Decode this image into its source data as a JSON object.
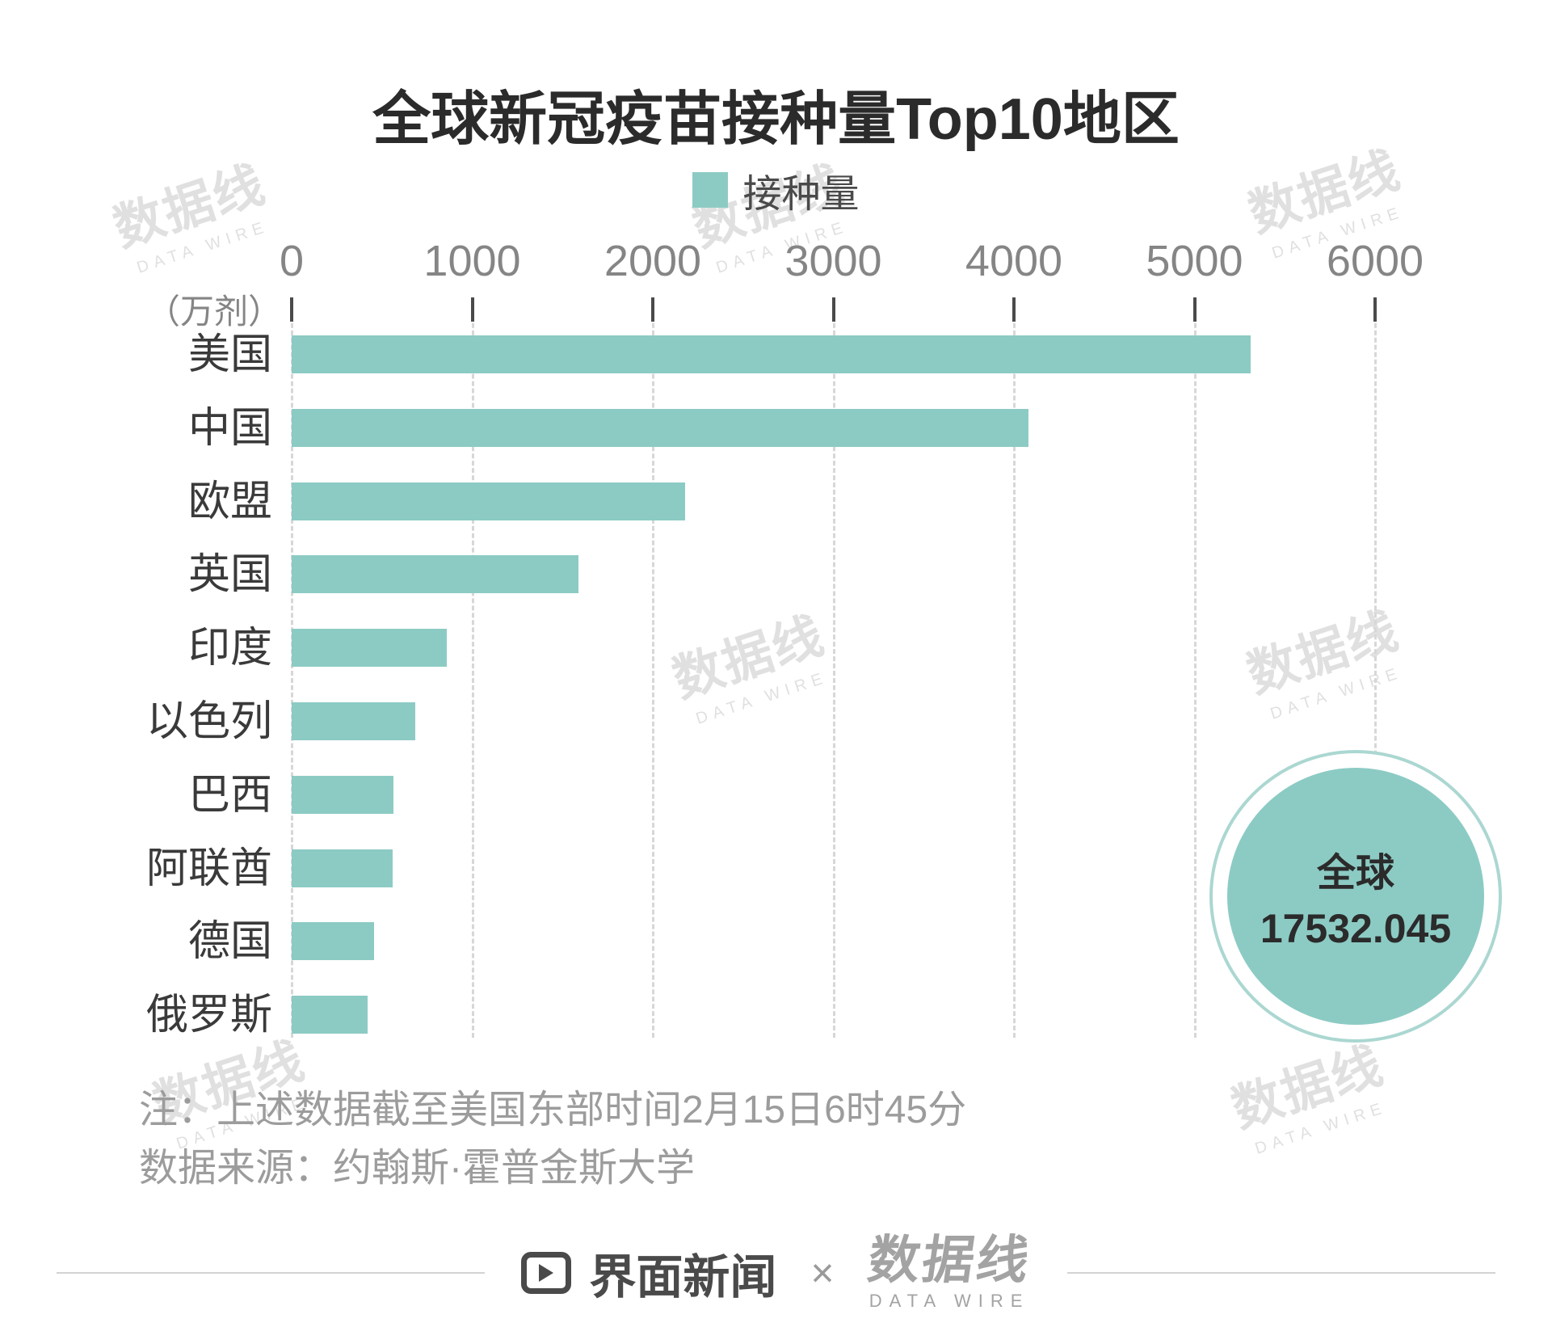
{
  "title": "全球新冠疫苗接种量Top10地区",
  "legend": {
    "label": "接种量"
  },
  "axis": {
    "unit": "（万剂）"
  },
  "chart_data": {
    "type": "bar",
    "orientation": "horizontal",
    "title": "全球新冠疫苗接种量Top10地区",
    "legend": [
      "接种量"
    ],
    "categories": [
      "美国",
      "中国",
      "欧盟",
      "英国",
      "印度",
      "以色列",
      "巴西",
      "阿联酋",
      "德国",
      "俄罗斯"
    ],
    "values": [
      5310,
      4080,
      2180,
      1590,
      860,
      685,
      565,
      560,
      455,
      420
    ],
    "xlabel": "（万剂）",
    "xticks": [
      0,
      1000,
      2000,
      3000,
      4000,
      5000,
      6000
    ],
    "xlim": [
      0,
      6300
    ],
    "grid": "dashed-vertical",
    "bar_color": "#8CCBC4",
    "annotation": {
      "label": "全球",
      "value": 17532.045
    }
  },
  "badge": {
    "label": "全球",
    "value": "17532.045"
  },
  "notes": {
    "line1": "注：上述数据截至美国东部时间2月15日6时45分",
    "line2": "数据来源：约翰斯·霍普金斯大学"
  },
  "footer": {
    "brand1": "界面新闻",
    "separator": "×",
    "brand2": "数据线",
    "brand2_sub": "DATA WIRE"
  },
  "watermark": {
    "text": "数据线",
    "sub": "DATA WIRE"
  },
  "colors": {
    "bar": "#8CCBC4",
    "title_text": "#2B2B2B",
    "axis_text": "#858585",
    "label_text": "#3A3A3A",
    "note_text": "#9C9C9C",
    "grid": "#D7D7D7"
  }
}
